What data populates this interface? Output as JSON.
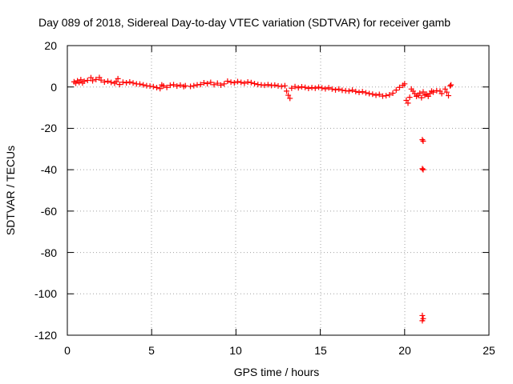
{
  "chart_data": {
    "type": "scatter",
    "title": "Day 089 of 2018, Sidereal Day-to-day VTEC variation (SDTVAR) for receiver gamb",
    "xlabel": "GPS time / hours",
    "ylabel": "SDTVAR / TECUs",
    "xlim": [
      0,
      25
    ],
    "ylim": [
      -120,
      20
    ],
    "xticks": [
      0,
      5,
      10,
      15,
      20,
      25
    ],
    "xtick_labels": [
      "0",
      "5",
      "10",
      "15",
      "20",
      "25"
    ],
    "yticks": [
      20,
      0,
      -20,
      -40,
      -60,
      -80,
      -100,
      -120
    ],
    "ytick_labels": [
      "20",
      "0",
      "-20",
      "-40",
      "-60",
      "-80",
      "-100",
      "-120"
    ],
    "grid": true,
    "marker": "+",
    "color": "#ff0000",
    "series": [
      {
        "name": "SDTVAR",
        "points": [
          [
            0.4,
            2.5
          ],
          [
            0.5,
            1.8
          ],
          [
            0.6,
            3.0
          ],
          [
            0.7,
            2.2
          ],
          [
            0.8,
            3.5
          ],
          [
            0.9,
            1.9
          ],
          [
            1.0,
            2.8
          ],
          [
            1.2,
            3.2
          ],
          [
            1.4,
            4.5
          ],
          [
            1.5,
            3.0
          ],
          [
            1.7,
            3.6
          ],
          [
            1.9,
            4.6
          ],
          [
            2.0,
            3.3
          ],
          [
            2.2,
            2.4
          ],
          [
            2.4,
            2.8
          ],
          [
            2.6,
            2.2
          ],
          [
            2.8,
            1.8
          ],
          [
            2.9,
            2.6
          ],
          [
            3.0,
            4.0
          ],
          [
            3.1,
            1.2
          ],
          [
            3.3,
            2.3
          ],
          [
            3.5,
            2.0
          ],
          [
            3.7,
            2.4
          ],
          [
            3.9,
            1.9
          ],
          [
            4.1,
            1.5
          ],
          [
            4.3,
            1.4
          ],
          [
            4.5,
            1.0
          ],
          [
            4.7,
            0.6
          ],
          [
            4.9,
            0.4
          ],
          [
            5.1,
            0.2
          ],
          [
            5.3,
            -0.3
          ],
          [
            5.5,
            -0.8
          ],
          [
            5.6,
            1.0
          ],
          [
            5.7,
            0.5
          ],
          [
            5.9,
            -0.2
          ],
          [
            6.1,
            0.8
          ],
          [
            6.3,
            1.1
          ],
          [
            6.5,
            0.4
          ],
          [
            6.7,
            0.9
          ],
          [
            6.9,
            0.2
          ],
          [
            7.0,
            0.6
          ],
          [
            7.3,
            0.3
          ],
          [
            7.5,
            0.6
          ],
          [
            7.7,
            1.0
          ],
          [
            7.9,
            1.2
          ],
          [
            8.1,
            2.0
          ],
          [
            8.3,
            1.6
          ],
          [
            8.5,
            2.2
          ],
          [
            8.7,
            1.1
          ],
          [
            8.9,
            1.8
          ],
          [
            9.1,
            0.9
          ],
          [
            9.3,
            1.5
          ],
          [
            9.5,
            2.8
          ],
          [
            9.7,
            2.3
          ],
          [
            9.9,
            2.0
          ],
          [
            10.1,
            2.6
          ],
          [
            10.3,
            2.2
          ],
          [
            10.5,
            1.8
          ],
          [
            10.7,
            2.4
          ],
          [
            10.9,
            2.1
          ],
          [
            11.1,
            1.6
          ],
          [
            11.3,
            1.2
          ],
          [
            11.5,
            1.0
          ],
          [
            11.7,
            0.8
          ],
          [
            11.9,
            1.1
          ],
          [
            12.1,
            0.7
          ],
          [
            12.3,
            0.9
          ],
          [
            12.5,
            0.5
          ],
          [
            12.7,
            0.3
          ],
          [
            12.9,
            0.6
          ],
          [
            13.0,
            -2.0
          ],
          [
            13.1,
            -4.0
          ],
          [
            13.2,
            -5.5
          ],
          [
            13.3,
            -0.6
          ],
          [
            13.5,
            0.2
          ],
          [
            13.7,
            -0.4
          ],
          [
            13.9,
            0.1
          ],
          [
            14.1,
            -0.2
          ],
          [
            14.3,
            -0.7
          ],
          [
            14.5,
            -0.3
          ],
          [
            14.7,
            -0.6
          ],
          [
            14.9,
            -0.1
          ],
          [
            15.1,
            -0.5
          ],
          [
            15.3,
            -0.9
          ],
          [
            15.5,
            -0.4
          ],
          [
            15.7,
            -1.0
          ],
          [
            15.9,
            -1.4
          ],
          [
            16.1,
            -1.0
          ],
          [
            16.3,
            -1.6
          ],
          [
            16.5,
            -1.8
          ],
          [
            16.7,
            -2.0
          ],
          [
            16.9,
            -1.5
          ],
          [
            17.1,
            -2.2
          ],
          [
            17.3,
            -2.6
          ],
          [
            17.5,
            -2.3
          ],
          [
            17.7,
            -2.8
          ],
          [
            17.9,
            -3.2
          ],
          [
            18.1,
            -3.5
          ],
          [
            18.3,
            -4.0
          ],
          [
            18.5,
            -3.6
          ],
          [
            18.7,
            -4.4
          ],
          [
            18.9,
            -4.2
          ],
          [
            19.1,
            -3.8
          ],
          [
            19.3,
            -3.0
          ],
          [
            19.5,
            -1.5
          ],
          [
            19.7,
            -0.2
          ],
          [
            19.9,
            0.8
          ],
          [
            20.0,
            1.5
          ],
          [
            20.1,
            -6.5
          ],
          [
            20.2,
            -7.8
          ],
          [
            20.3,
            -5.0
          ],
          [
            20.4,
            -1.0
          ],
          [
            20.5,
            -2.0
          ],
          [
            20.6,
            -3.2
          ],
          [
            20.7,
            -4.5
          ],
          [
            20.8,
            -4.0
          ],
          [
            20.9,
            -3.0
          ],
          [
            21.0,
            -5.2
          ],
          [
            21.1,
            -2.4
          ],
          [
            21.2,
            -4.0
          ],
          [
            21.3,
            -3.5
          ],
          [
            21.4,
            -4.5
          ],
          [
            21.5,
            -3.2
          ],
          [
            21.6,
            -2.0
          ],
          [
            21.7,
            -2.5
          ],
          [
            21.9,
            -1.8
          ],
          [
            22.1,
            -2.0
          ],
          [
            22.2,
            -3.2
          ],
          [
            22.4,
            -1.0
          ],
          [
            22.5,
            -2.5
          ],
          [
            22.6,
            -4.2
          ],
          [
            22.7,
            0.5
          ],
          [
            22.75,
            1.0
          ],
          [
            21.05,
            -25.5
          ],
          [
            21.1,
            -26.2
          ],
          [
            21.05,
            -39.5
          ],
          [
            21.1,
            -40.0
          ],
          [
            21.05,
            -110.5
          ],
          [
            21.1,
            -112.0
          ],
          [
            21.05,
            -113.0
          ]
        ]
      }
    ]
  }
}
